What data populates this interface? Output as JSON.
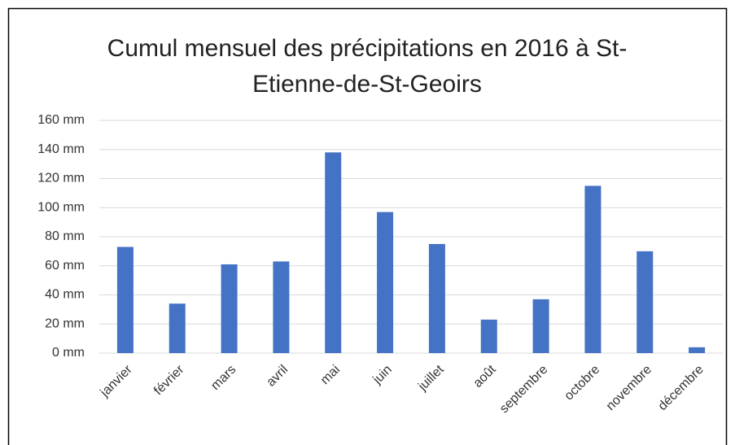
{
  "chart_data": {
    "type": "bar",
    "title": "Cumul mensuel des précipitations en 2016 à St-Etienne-de-St-Geoirs",
    "categories": [
      "janvier",
      "février",
      "mars",
      "avril",
      "mai",
      "juin",
      "juillet",
      "août",
      "septembre",
      "octobre",
      "novembre",
      "décembre"
    ],
    "values": [
      73,
      34,
      61,
      63,
      138,
      97,
      75,
      23,
      37,
      115,
      70,
      4
    ],
    "color": "#4472c4",
    "ylim": [
      0,
      160
    ],
    "yticks": [
      {
        "value": 0,
        "label": "0 mm"
      },
      {
        "value": 20,
        "label": "20 mm"
      },
      {
        "value": 40,
        "label": "40 mm"
      },
      {
        "value": 60,
        "label": "60 mm"
      },
      {
        "value": 80,
        "label": "80 mm"
      },
      {
        "value": 100,
        "label": "100 mm"
      },
      {
        "value": 120,
        "label": "120 mm"
      },
      {
        "value": 140,
        "label": "140 mm"
      },
      {
        "value": 160,
        "label": "160 mm"
      }
    ],
    "grid": true
  }
}
